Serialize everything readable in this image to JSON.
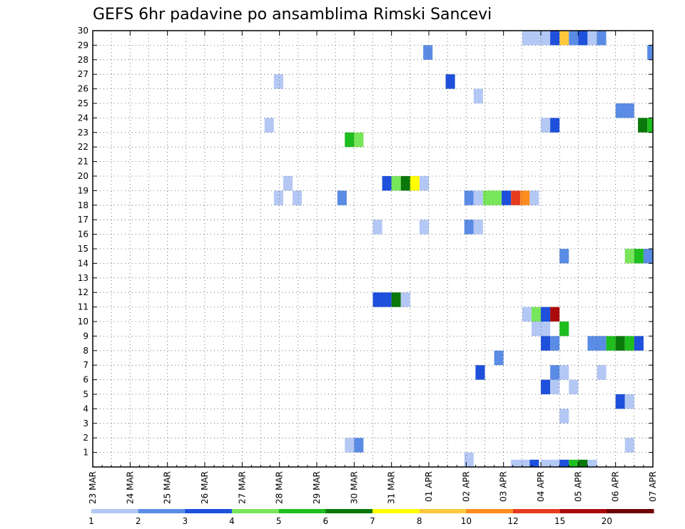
{
  "chart_data": {
    "type": "heatmap",
    "title": "GEFS 6hr padavine po ansamblima Rimski Sancevi",
    "y_label_values": [
      1,
      2,
      3,
      4,
      5,
      6,
      7,
      8,
      9,
      10,
      11,
      12,
      13,
      14,
      15,
      16,
      17,
      18,
      19,
      20,
      21,
      22,
      23,
      24,
      25,
      26,
      27,
      28,
      29,
      30
    ],
    "x_tick_labels": [
      "23 MAR",
      "24 MAR",
      "25 MAR",
      "26 MAR",
      "27 MAR",
      "28 MAR",
      "29 MAR",
      "30 MAR",
      "31 MAR",
      "01 APR",
      "02 APR",
      "03 APR",
      "04 APR",
      "05 APR",
      "06 APR",
      "07 APR"
    ],
    "x_range_days": [
      0,
      15
    ],
    "y_range": [
      0,
      30
    ],
    "grid": "dotted",
    "colorbar": {
      "labels": [
        "1",
        "2",
        "3",
        "4",
        "5",
        "6",
        "7",
        "8",
        "10",
        "12",
        "15",
        "20"
      ],
      "colors": [
        "#b4c8f5",
        "#5a8ce6",
        "#1e50dc",
        "#78e65a",
        "#1ebe1e",
        "#0a780a",
        "#ffff00",
        "#ffc83c",
        "#ff8c1e",
        "#e63c1e",
        "#aa0a0a",
        "#6e0000"
      ]
    },
    "cells": [
      {
        "x": 11.2,
        "y": 0,
        "w": 0.5,
        "c": 0
      },
      {
        "x": 11.7,
        "y": 0,
        "w": 0.25,
        "c": 2
      },
      {
        "x": 12.0,
        "y": 0,
        "w": 0.5,
        "c": 0
      },
      {
        "x": 12.5,
        "y": 0,
        "w": 0.25,
        "c": 2
      },
      {
        "x": 12.75,
        "y": 0,
        "w": 0.25,
        "c": 4
      },
      {
        "x": 13.0,
        "y": 0,
        "w": 0.25,
        "c": 5
      },
      {
        "x": 13.25,
        "y": 0,
        "w": 0.25,
        "c": 0
      },
      {
        "x": 9.95,
        "y": 0.5,
        "w": 0.25,
        "c": 0
      },
      {
        "x": 6.75,
        "y": 1.5,
        "w": 0.25,
        "c": 0
      },
      {
        "x": 7.0,
        "y": 1.5,
        "w": 0.25,
        "c": 1
      },
      {
        "x": 14.25,
        "y": 1.5,
        "w": 0.25,
        "c": 0
      },
      {
        "x": 12.5,
        "y": 3.5,
        "w": 0.25,
        "c": 0
      },
      {
        "x": 14.0,
        "y": 4.5,
        "w": 0.25,
        "c": 2
      },
      {
        "x": 14.25,
        "y": 4.5,
        "w": 0.25,
        "c": 0
      },
      {
        "x": 12.0,
        "y": 5.5,
        "w": 0.25,
        "c": 2
      },
      {
        "x": 12.25,
        "y": 5.5,
        "w": 0.25,
        "c": 0
      },
      {
        "x": 12.75,
        "y": 5.5,
        "w": 0.25,
        "c": 0
      },
      {
        "x": 10.25,
        "y": 6.5,
        "w": 0.25,
        "c": 2
      },
      {
        "x": 12.25,
        "y": 6.5,
        "w": 0.25,
        "c": 1
      },
      {
        "x": 12.5,
        "y": 6.5,
        "w": 0.25,
        "c": 0
      },
      {
        "x": 13.5,
        "y": 6.5,
        "w": 0.25,
        "c": 0
      },
      {
        "x": 10.75,
        "y": 7.5,
        "w": 0.25,
        "c": 1
      },
      {
        "x": 12.0,
        "y": 8.5,
        "w": 0.25,
        "c": 2
      },
      {
        "x": 12.25,
        "y": 8.5,
        "w": 0.25,
        "c": 1
      },
      {
        "x": 13.25,
        "y": 8.5,
        "w": 0.5,
        "c": 1
      },
      {
        "x": 13.75,
        "y": 8.5,
        "w": 0.25,
        "c": 4
      },
      {
        "x": 14.0,
        "y": 8.5,
        "w": 0.25,
        "c": 5
      },
      {
        "x": 14.25,
        "y": 8.5,
        "w": 0.25,
        "c": 4
      },
      {
        "x": 14.5,
        "y": 8.5,
        "w": 0.25,
        "c": 2
      },
      {
        "x": 11.75,
        "y": 9.5,
        "w": 0.5,
        "c": 0
      },
      {
        "x": 12.5,
        "y": 9.5,
        "w": 0.25,
        "c": 4
      },
      {
        "x": 11.5,
        "y": 10.5,
        "w": 0.25,
        "c": 0
      },
      {
        "x": 11.75,
        "y": 10.5,
        "w": 0.25,
        "c": 3
      },
      {
        "x": 12.0,
        "y": 10.5,
        "w": 0.25,
        "c": 2
      },
      {
        "x": 12.25,
        "y": 10.5,
        "w": 0.25,
        "c": 10
      },
      {
        "x": 7.5,
        "y": 11.5,
        "w": 0.5,
        "c": 2
      },
      {
        "x": 8.0,
        "y": 11.5,
        "w": 0.25,
        "c": 5
      },
      {
        "x": 8.25,
        "y": 11.5,
        "w": 0.25,
        "c": 0
      },
      {
        "x": 12.5,
        "y": 14.5,
        "w": 0.25,
        "c": 1
      },
      {
        "x": 14.25,
        "y": 14.5,
        "w": 0.25,
        "c": 3
      },
      {
        "x": 14.5,
        "y": 14.5,
        "w": 0.25,
        "c": 4
      },
      {
        "x": 14.75,
        "y": 14.5,
        "w": 0.25,
        "c": 1
      },
      {
        "x": 7.5,
        "y": 16.5,
        "w": 0.25,
        "c": 0
      },
      {
        "x": 8.75,
        "y": 16.5,
        "w": 0.25,
        "c": 0
      },
      {
        "x": 9.95,
        "y": 16.5,
        "w": 0.25,
        "c": 1
      },
      {
        "x": 10.2,
        "y": 16.5,
        "w": 0.25,
        "c": 0
      },
      {
        "x": 4.85,
        "y": 18.5,
        "w": 0.25,
        "c": 0
      },
      {
        "x": 5.35,
        "y": 18.5,
        "w": 0.25,
        "c": 0
      },
      {
        "x": 6.55,
        "y": 18.5,
        "w": 0.25,
        "c": 1
      },
      {
        "x": 9.95,
        "y": 18.5,
        "w": 0.25,
        "c": 1
      },
      {
        "x": 10.2,
        "y": 18.5,
        "w": 0.25,
        "c": 0
      },
      {
        "x": 10.45,
        "y": 18.5,
        "w": 0.5,
        "c": 3
      },
      {
        "x": 10.95,
        "y": 18.5,
        "w": 0.25,
        "c": 2
      },
      {
        "x": 11.2,
        "y": 18.5,
        "w": 0.25,
        "c": 9
      },
      {
        "x": 11.45,
        "y": 18.5,
        "w": 0.25,
        "c": 8
      },
      {
        "x": 11.7,
        "y": 18.5,
        "w": 0.25,
        "c": 0
      },
      {
        "x": 5.1,
        "y": 19.5,
        "w": 0.25,
        "c": 0
      },
      {
        "x": 7.75,
        "y": 19.5,
        "w": 0.25,
        "c": 2
      },
      {
        "x": 8.0,
        "y": 19.5,
        "w": 0.25,
        "c": 3
      },
      {
        "x": 8.25,
        "y": 19.5,
        "w": 0.25,
        "c": 5
      },
      {
        "x": 8.5,
        "y": 19.5,
        "w": 0.25,
        "c": 6
      },
      {
        "x": 8.75,
        "y": 19.5,
        "w": 0.25,
        "c": 0
      },
      {
        "x": 6.75,
        "y": 22.5,
        "w": 0.25,
        "c": 4
      },
      {
        "x": 7.0,
        "y": 22.5,
        "w": 0.25,
        "c": 3
      },
      {
        "x": 4.6,
        "y": 23.5,
        "w": 0.25,
        "c": 0
      },
      {
        "x": 12.0,
        "y": 23.5,
        "w": 0.25,
        "c": 0
      },
      {
        "x": 12.25,
        "y": 23.5,
        "w": 0.25,
        "c": 2
      },
      {
        "x": 14.6,
        "y": 23.5,
        "w": 0.25,
        "c": 5
      },
      {
        "x": 14.85,
        "y": 23.5,
        "w": 0.15,
        "c": 4
      },
      {
        "x": 14.0,
        "y": 24.5,
        "w": 0.5,
        "c": 1
      },
      {
        "x": 10.2,
        "y": 25.5,
        "w": 0.25,
        "c": 0
      },
      {
        "x": 4.85,
        "y": 26.5,
        "w": 0.25,
        "c": 0
      },
      {
        "x": 9.45,
        "y": 26.5,
        "w": 0.25,
        "c": 2
      },
      {
        "x": 8.85,
        "y": 28.5,
        "w": 0.25,
        "c": 1
      },
      {
        "x": 14.85,
        "y": 28.5,
        "w": 0.15,
        "c": 1
      },
      {
        "x": 11.5,
        "y": 29.5,
        "w": 0.75,
        "c": 0
      },
      {
        "x": 12.25,
        "y": 29.5,
        "w": 0.25,
        "c": 2
      },
      {
        "x": 12.5,
        "y": 29.5,
        "w": 0.25,
        "c": 7
      },
      {
        "x": 12.75,
        "y": 29.5,
        "w": 0.25,
        "c": 1
      },
      {
        "x": 13.0,
        "y": 29.5,
        "w": 0.25,
        "c": 2
      },
      {
        "x": 13.25,
        "y": 29.5,
        "w": 0.25,
        "c": 0
      },
      {
        "x": 13.5,
        "y": 29.5,
        "w": 0.25,
        "c": 1
      }
    ]
  }
}
